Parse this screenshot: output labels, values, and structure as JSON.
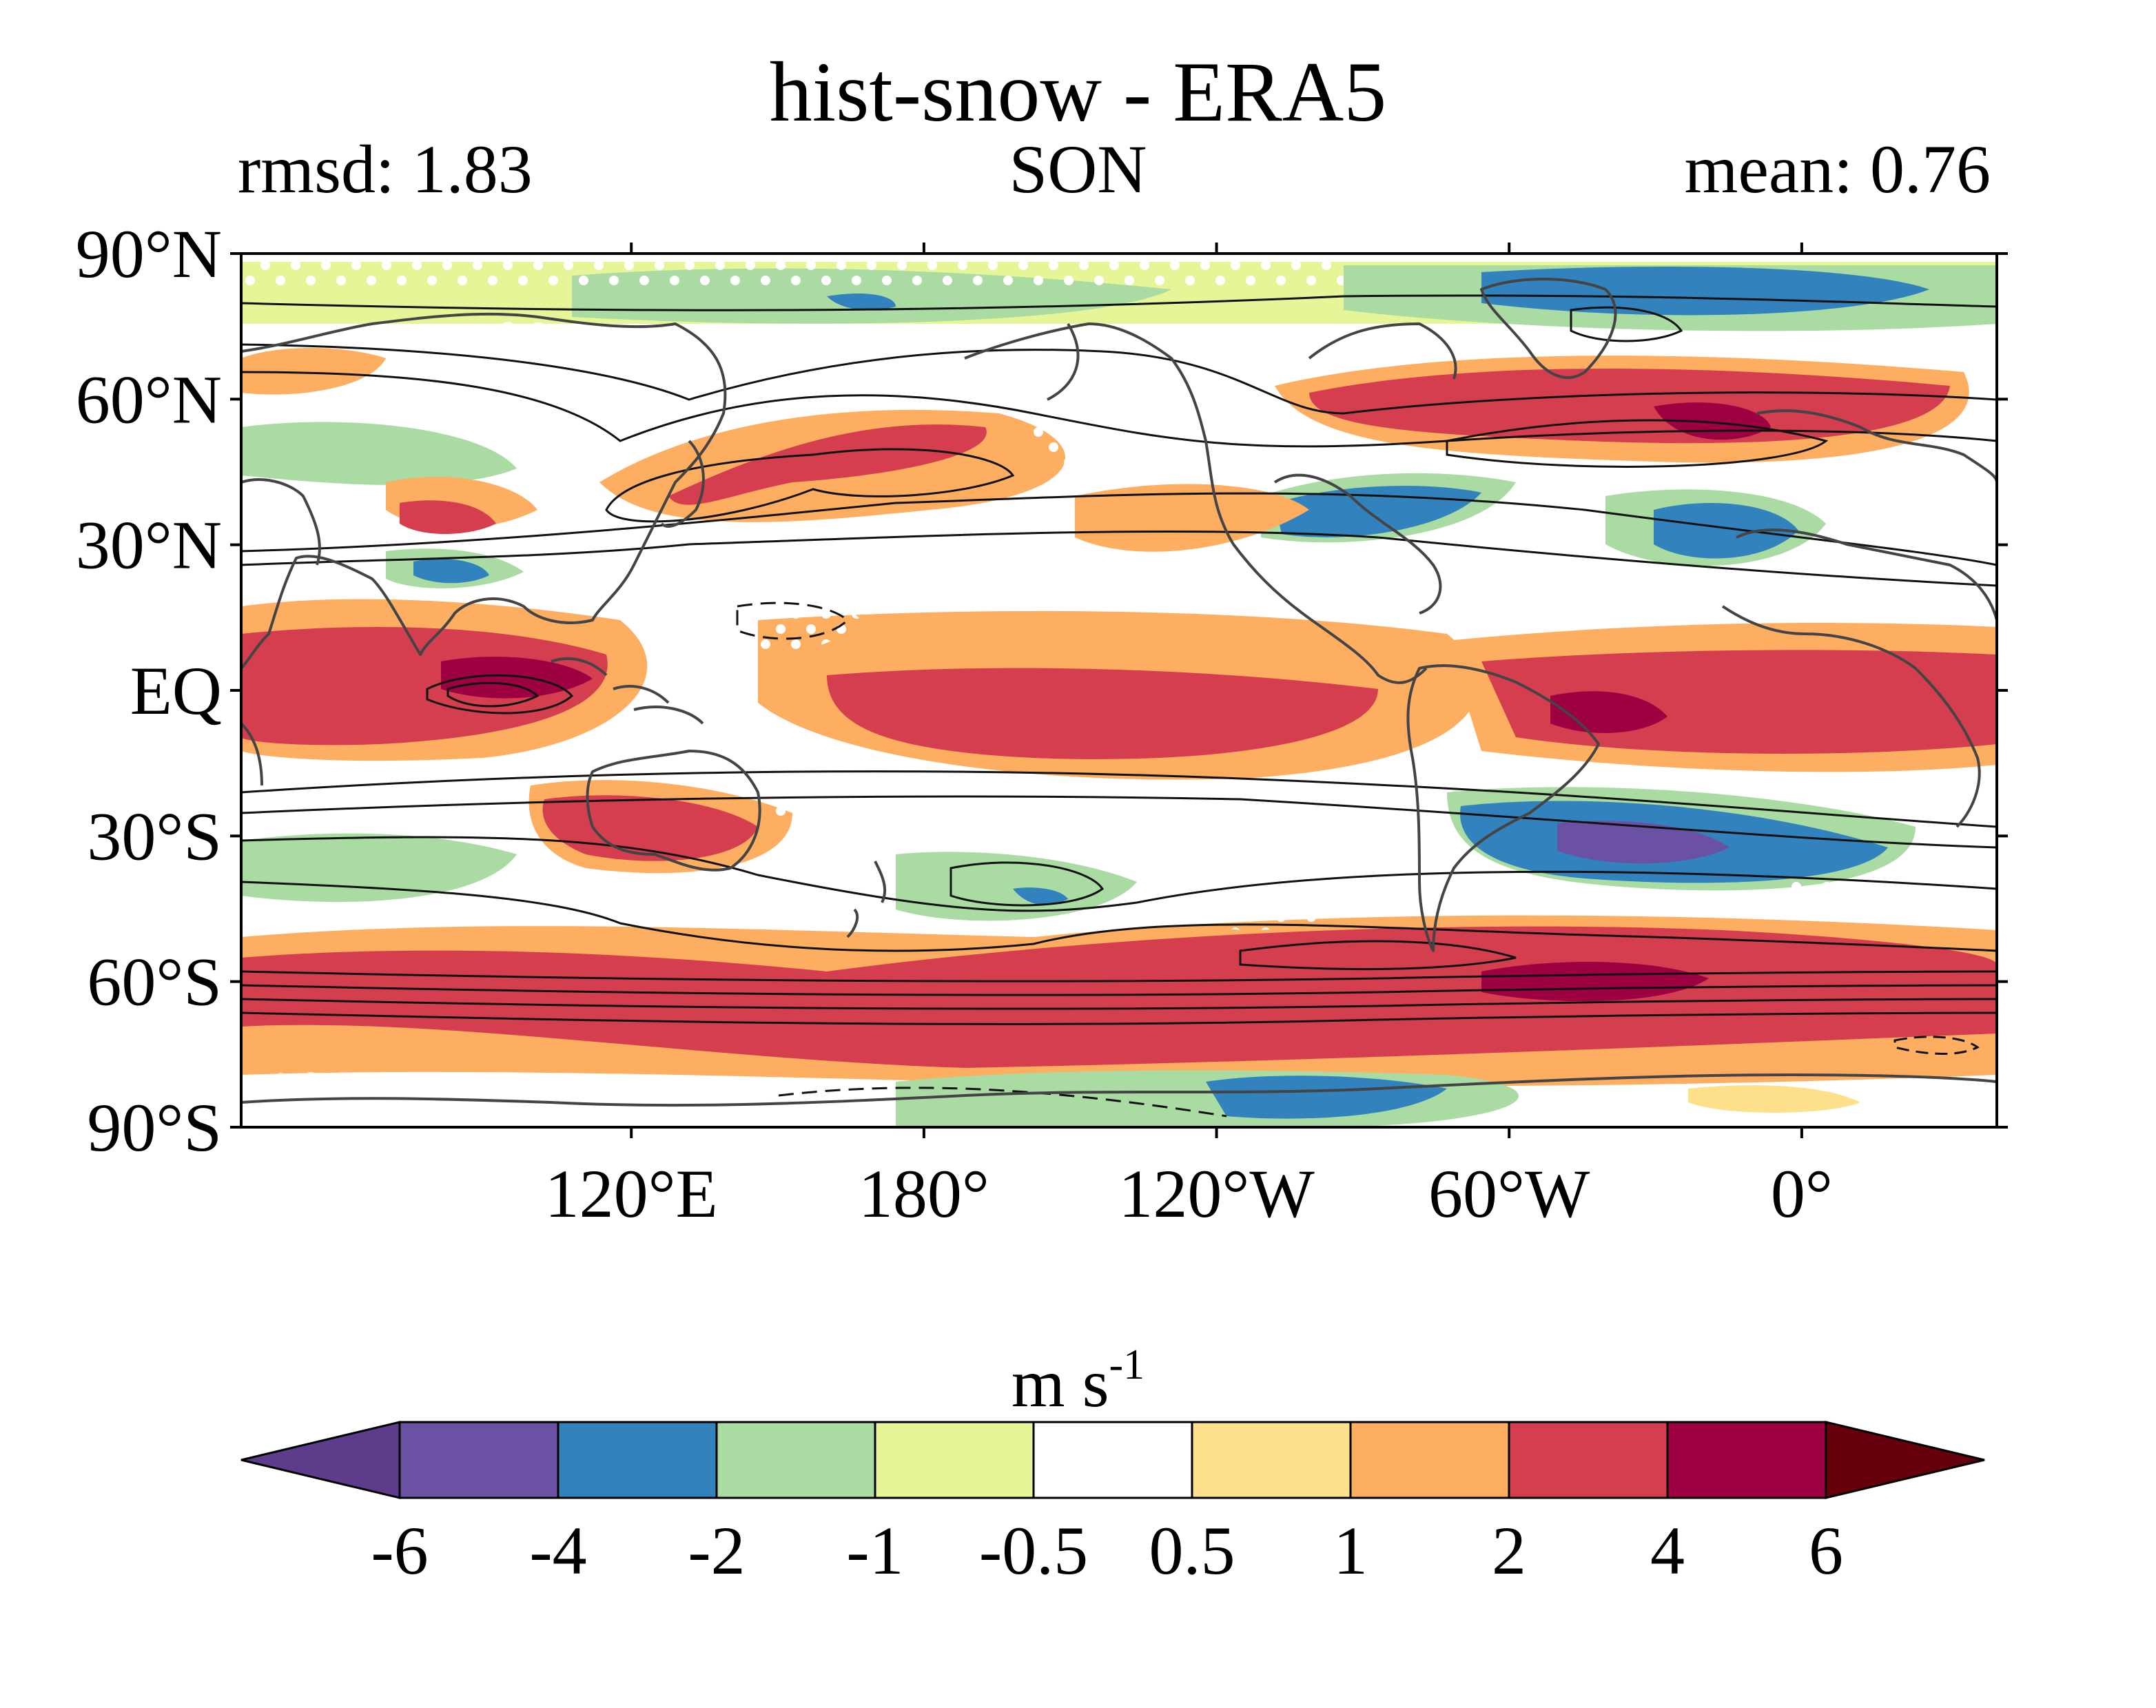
{
  "title": "hist-snow - ERA5",
  "left_annotation": "rmsd: 1.83",
  "center_annotation": "SON",
  "right_annotation": "mean: 0.76",
  "map": {
    "lat_labels": [
      {
        "lat": 90,
        "text": "90°N"
      },
      {
        "lat": 60,
        "text": "60°N"
      },
      {
        "lat": 30,
        "text": "30°N"
      },
      {
        "lat": 0,
        "text": "EQ"
      },
      {
        "lat": -30,
        "text": "30°S"
      },
      {
        "lat": -60,
        "text": "60°S"
      },
      {
        "lat": -90,
        "text": "90°S"
      }
    ],
    "lon_labels": [
      {
        "lon": 120,
        "text": "120°E"
      },
      {
        "lon": 180,
        "text": "180°"
      },
      {
        "lon": 240,
        "text": "120°W"
      },
      {
        "lon": 300,
        "text": "60°W"
      },
      {
        "lon": 360,
        "text": "0°"
      }
    ],
    "lon_range": [
      40,
      400
    ],
    "lat_range": [
      -90,
      90
    ]
  },
  "colorbar": {
    "units_base": "m s",
    "units_exp": "-1",
    "labels": [
      "-6",
      "-4",
      "-2",
      "-1",
      "-0.5",
      "0.5",
      "1",
      "2",
      "4",
      "6"
    ],
    "colors": [
      "#5e3c8c",
      "#6a51a3",
      "#3182bd",
      "#a9dba3",
      "#e6f598",
      "#ffffff",
      "#fee08b",
      "#fdae61",
      "#d53e4f",
      "#9e0142",
      "#67000d"
    ]
  }
}
